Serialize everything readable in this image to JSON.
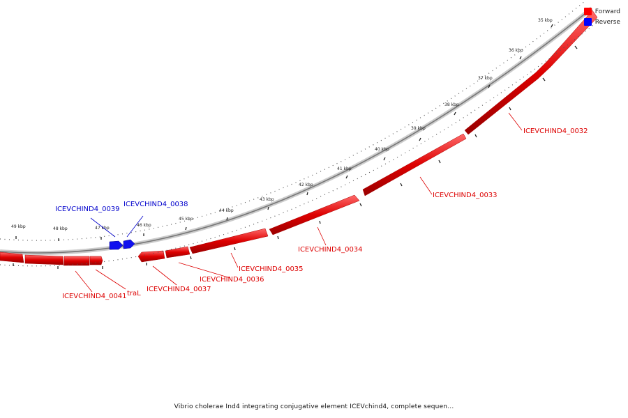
{
  "legend": {
    "items": [
      {
        "label": "Forward",
        "color": "#ff0000"
      },
      {
        "label": "Reverse",
        "color": "#0000ff"
      }
    ]
  },
  "caption": "Vibrio cholerae Ind4 integrating conjugative element ICEVchind4, complete sequen...",
  "ticks": {
    "labels": [
      "35 kbp",
      "36 kbp",
      "37 kbp",
      "38 kbp",
      "39 kbp",
      "40 kbp",
      "41 kbp",
      "42 kbp",
      "43 kbp",
      "44 kbp",
      "45 kbp",
      "46 kbp",
      "47 kbp",
      "48 kbp",
      "49 kbp"
    ]
  },
  "genes": [
    {
      "name": "ICEVCHIND4_0032",
      "strand": "forward"
    },
    {
      "name": "ICEVCHIND4_0033",
      "strand": "forward"
    },
    {
      "name": "ICEVCHIND4_0034",
      "strand": "forward"
    },
    {
      "name": "ICEVCHIND4_0035",
      "strand": "forward"
    },
    {
      "name": "ICEVCHIND4_0036",
      "strand": "forward"
    },
    {
      "name": "ICEVCHIND4_0037",
      "strand": "forward"
    },
    {
      "name": "ICEVCHIND4_0038",
      "strand": "reverse"
    },
    {
      "name": "ICEVCHIND4_0039",
      "strand": "reverse"
    },
    {
      "name": "traL",
      "strand": "forward"
    },
    {
      "name": "ICEVCHIND4_0041",
      "strand": "forward"
    }
  ],
  "colors": {
    "forward": "#ff0000",
    "reverse": "#0000ff",
    "backbone": "#888888"
  }
}
